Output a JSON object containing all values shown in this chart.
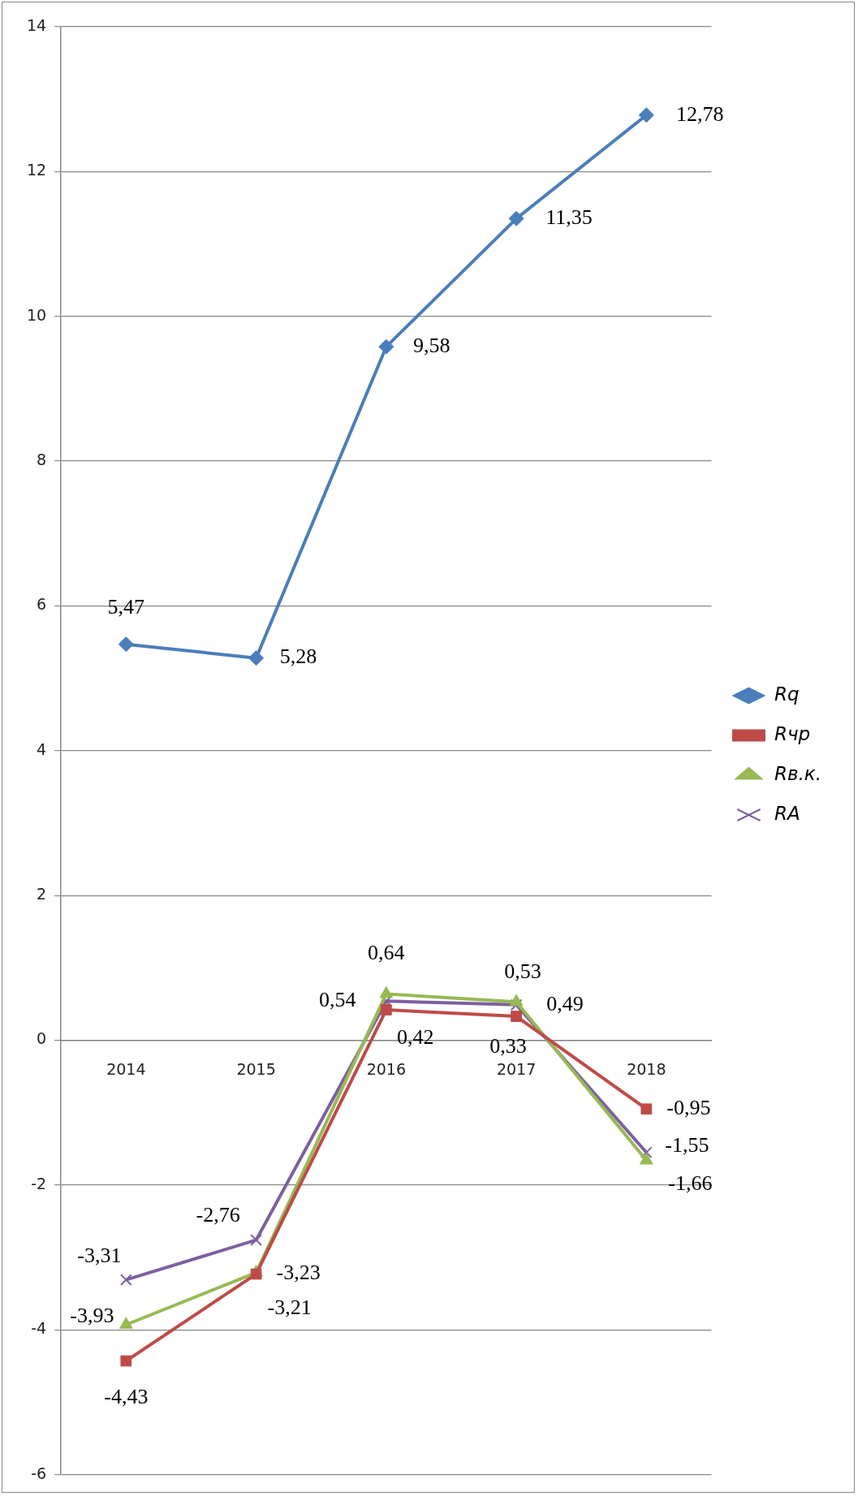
{
  "chart_data": {
    "type": "line",
    "categories": [
      "2014",
      "2015",
      "2016",
      "2017",
      "2018"
    ],
    "series": [
      {
        "name": "Rq",
        "color": "#4a7ebb",
        "marker": "diamond",
        "values": [
          5.47,
          5.28,
          9.58,
          11.35,
          12.78
        ],
        "value_labels": [
          "5,47",
          "5,28",
          "9,58",
          "11,35",
          "12,78"
        ]
      },
      {
        "name": "Rчр",
        "color": "#be4b48",
        "marker": "square",
        "values": [
          -4.43,
          -3.23,
          0.42,
          0.33,
          -0.95
        ],
        "value_labels": [
          "-4,43",
          "-3,23",
          "0,42",
          "0,33",
          "-0,95"
        ]
      },
      {
        "name": "Rв.к.",
        "color": "#98b954",
        "marker": "triangle",
        "values": [
          -3.93,
          -3.21,
          0.64,
          0.53,
          -1.66
        ],
        "value_labels": [
          "-3,93",
          "-3,21",
          "0,64",
          "0,53",
          "-1,66"
        ]
      },
      {
        "name": "RA",
        "color": "#7d60a0",
        "marker": "cross",
        "values": [
          -3.31,
          -2.76,
          0.54,
          0.49,
          -1.55
        ],
        "value_labels": [
          "-3,31",
          "-2,76",
          "0,54",
          "0,49",
          "-1,55"
        ]
      }
    ],
    "ylim": [
      -6,
      14
    ],
    "yticks": [
      -6,
      -4,
      -2,
      0,
      2,
      4,
      6,
      8,
      10,
      12,
      14
    ],
    "grid": "y",
    "legend": "right"
  }
}
